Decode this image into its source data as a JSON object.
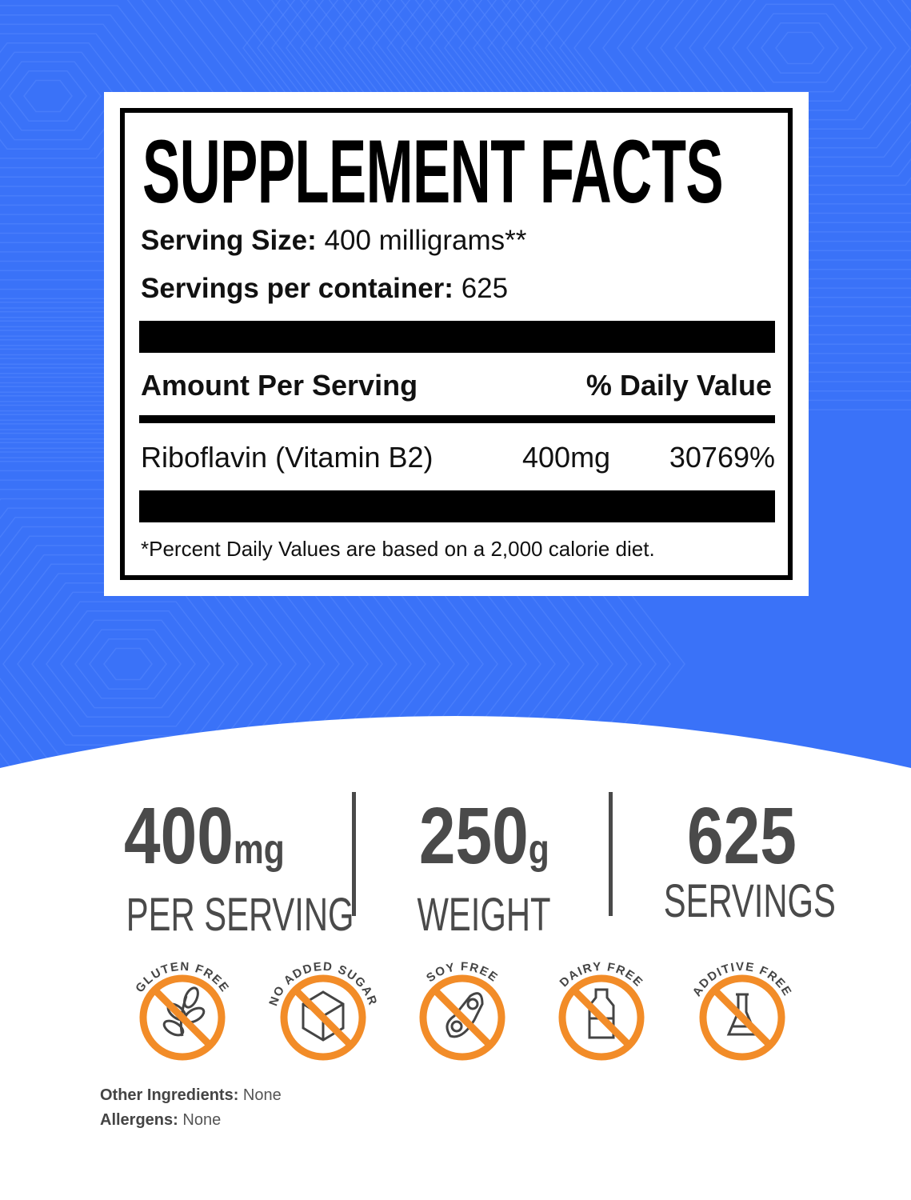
{
  "colors": {
    "background_blue": "#3a72f8",
    "badge_orange": "#f28c28",
    "stat_gray": "#4a4a4a"
  },
  "facts": {
    "title": "SUPPLEMENT FACTS",
    "serving_size_label": "Serving Size:",
    "serving_size_value": "400 milligrams**",
    "servings_label": "Servings per container:",
    "servings_value": "625",
    "amount_header": "Amount Per Serving",
    "dv_header": "% Daily Value",
    "ingredient": {
      "name": "Riboflavin (Vitamin B2)",
      "amount": "400mg",
      "dv": "30769%"
    },
    "footnote": "*Percent Daily Values are based on a 2,000 calorie diet."
  },
  "stats": [
    {
      "value": "400",
      "unit": "mg",
      "label": "PER SERVING"
    },
    {
      "value": "250",
      "unit": "g",
      "label": "WEIGHT"
    },
    {
      "value": "625",
      "unit": "",
      "label": "SERVINGS"
    }
  ],
  "badges": [
    {
      "label": "GLUTEN FREE",
      "icon": "wheat-icon"
    },
    {
      "label": "NO ADDED SUGAR",
      "icon": "sugar-cube-icon"
    },
    {
      "label": "SOY FREE",
      "icon": "soybean-icon"
    },
    {
      "label": "DAIRY FREE",
      "icon": "milk-bottle-icon"
    },
    {
      "label": "ADDITIVE FREE",
      "icon": "flask-icon"
    }
  ],
  "other_ingredients": {
    "label": "Other Ingredients:",
    "value": "None"
  },
  "allergens": {
    "label": "Allergens:",
    "value": "None"
  }
}
